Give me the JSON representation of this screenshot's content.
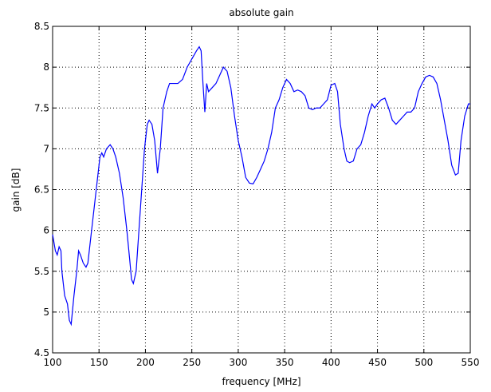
{
  "chart_data": {
    "type": "line",
    "title": "absolute gain",
    "xlabel": "frequency [MHz]",
    "ylabel": "gain [dB]",
    "color": "#0000ff",
    "grid": true,
    "x": [
      100,
      103,
      105,
      107,
      109,
      110,
      113,
      116,
      118,
      120,
      123,
      126,
      128,
      130,
      133,
      136,
      138,
      141,
      145,
      148,
      151,
      153,
      155,
      158,
      162,
      165,
      168,
      172,
      176,
      180,
      183,
      185,
      187,
      190,
      193,
      196,
      199,
      202,
      204,
      207,
      210,
      213,
      216,
      219,
      223,
      226,
      230,
      235,
      240,
      245,
      250,
      255,
      258,
      260,
      262,
      264,
      266,
      268,
      272,
      276,
      280,
      284,
      288,
      292,
      296,
      300,
      304,
      308,
      312,
      316,
      320,
      324,
      328,
      332,
      336,
      340,
      344,
      348,
      352,
      356,
      360,
      364,
      368,
      372,
      376,
      380,
      384,
      388,
      392,
      396,
      400,
      404,
      407,
      410,
      414,
      417,
      420,
      424,
      428,
      432,
      436,
      440,
      444,
      447,
      450,
      454,
      458,
      462,
      466,
      470,
      474,
      478,
      482,
      486,
      490,
      494,
      498,
      502,
      506,
      510,
      514,
      518,
      522,
      526,
      530,
      534,
      537,
      540,
      544,
      548,
      550
    ],
    "values": [
      5.95,
      5.75,
      5.7,
      5.8,
      5.75,
      5.5,
      5.2,
      5.1,
      4.9,
      4.85,
      5.2,
      5.5,
      5.75,
      5.7,
      5.6,
      5.55,
      5.6,
      5.9,
      6.3,
      6.6,
      6.9,
      6.95,
      6.9,
      7.0,
      7.05,
      7.0,
      6.9,
      6.7,
      6.4,
      6.0,
      5.65,
      5.4,
      5.35,
      5.5,
      6.0,
      6.5,
      7.0,
      7.3,
      7.35,
      7.3,
      7.1,
      6.7,
      7.0,
      7.5,
      7.7,
      7.8,
      7.8,
      7.8,
      7.85,
      8.0,
      8.1,
      8.2,
      8.25,
      8.2,
      7.8,
      7.45,
      7.8,
      7.7,
      7.75,
      7.8,
      7.9,
      8.0,
      7.95,
      7.75,
      7.4,
      7.1,
      6.9,
      6.65,
      6.58,
      6.57,
      6.65,
      6.75,
      6.85,
      7.0,
      7.2,
      7.5,
      7.6,
      7.75,
      7.85,
      7.8,
      7.7,
      7.72,
      7.7,
      7.65,
      7.5,
      7.48,
      7.5,
      7.5,
      7.55,
      7.6,
      7.78,
      7.8,
      7.7,
      7.3,
      7.0,
      6.85,
      6.83,
      6.85,
      7.0,
      7.05,
      7.2,
      7.4,
      7.55,
      7.5,
      7.55,
      7.6,
      7.62,
      7.5,
      7.35,
      7.3,
      7.35,
      7.4,
      7.45,
      7.45,
      7.5,
      7.7,
      7.8,
      7.88,
      7.9,
      7.88,
      7.8,
      7.6,
      7.35,
      7.1,
      6.8,
      6.68,
      6.7,
      7.1,
      7.4,
      7.55,
      7.55
    ],
    "xlim": [
      100,
      550
    ],
    "ylim": [
      4.5,
      8.5
    ],
    "xticks": [
      100,
      150,
      200,
      250,
      300,
      350,
      400,
      450,
      500,
      550
    ],
    "yticks": [
      4.5,
      5,
      5.5,
      6,
      6.5,
      7,
      7.5,
      8,
      8.5
    ]
  }
}
